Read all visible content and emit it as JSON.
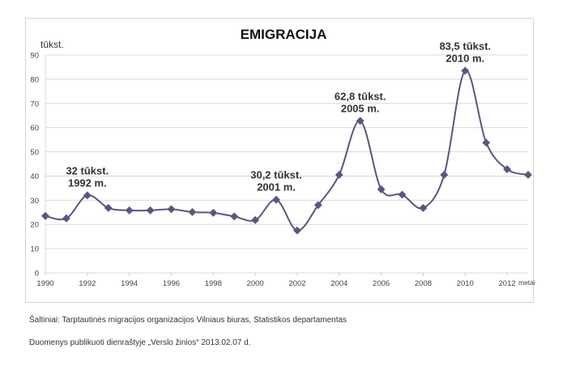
{
  "chart_data": {
    "type": "line",
    "title": "EMIGRACIJA",
    "ylabel": "tūkst.",
    "xlabel": "metai",
    "ylim": [
      0,
      90
    ],
    "yticks": [
      0,
      10,
      20,
      30,
      40,
      50,
      60,
      70,
      80,
      90
    ],
    "xticks": [
      1990,
      1992,
      1994,
      1996,
      1998,
      2000,
      2002,
      2004,
      2006,
      2008,
      2010,
      2012
    ],
    "xlim": [
      1990,
      2013
    ],
    "grid": true,
    "series": [
      {
        "name": "Emigracija",
        "color": "#5a5680",
        "x": [
          1990,
          1991,
          1992,
          1993,
          1994,
          1995,
          1996,
          1997,
          1998,
          1999,
          2000,
          2001,
          2002,
          2003,
          2004,
          2005,
          2006,
          2007,
          2008,
          2009,
          2010,
          2011,
          2012,
          2013
        ],
        "values": [
          23.5,
          22.5,
          32,
          26.8,
          25.8,
          25.8,
          26.3,
          25.1,
          24.8,
          23.3,
          21.8,
          30.2,
          17.5,
          28,
          40.5,
          62.8,
          34.5,
          32.3,
          26.8,
          40.5,
          83.5,
          53.8,
          42.8,
          40.5
        ]
      }
    ],
    "annotations": [
      {
        "year": 1992,
        "value": 32,
        "line1": "32 tūkst.",
        "line2": "1992 m."
      },
      {
        "year": 2001,
        "value": 30.2,
        "line1": "30,2 tūkst.",
        "line2": "2001 m."
      },
      {
        "year": 2005,
        "value": 62.8,
        "line1": "62,8 tūkst.",
        "line2": "2005 m."
      },
      {
        "year": 2010,
        "value": 83.5,
        "line1": "83,5 tūkst.",
        "line2": "2010 m."
      }
    ]
  },
  "footer": {
    "sources": "Šaltiniai: Tarptautinės migracijos organizacijos Vilniaus biuras, Statistikos departamentas",
    "published": "Duomenys publikuoti dienraštyje „Verslo žinios“ 2013.02.07 d."
  }
}
